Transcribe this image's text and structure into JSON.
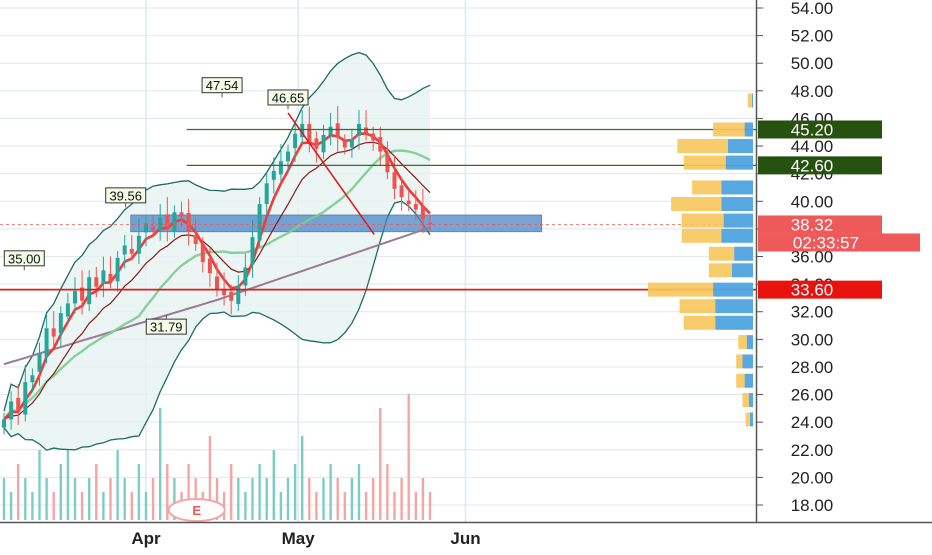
{
  "colors": {
    "up": "#26a69a",
    "down": "#ef5350",
    "ema_fast": "#ef3b3b",
    "ema_mid": "#8b1a1a",
    "sma_mid": "#7ecb8f",
    "sma_long": "#9c7a92",
    "bb_band": "#1f6b5f",
    "bb_fill": "#e6f3f1",
    "zone": "#4a86c8",
    "level_line": "#3d6b2a",
    "support_line": "#e01b1b",
    "vp_buy": "#f7c65a",
    "vp_sell": "#4fa3e0",
    "grid": "#dce8f2"
  },
  "chart_data": {
    "type": "candlestick",
    "ylim": [
      16.0,
      55.0
    ],
    "x_start": "2019-03-04",
    "y_ticks": [
      "18.00",
      "20.00",
      "22.00",
      "24.00",
      "26.00",
      "28.00",
      "30.00",
      "32.00",
      "34.00",
      "36.00",
      "38.00",
      "40.00",
      "42.00",
      "44.00",
      "46.00",
      "48.00",
      "50.00",
      "52.00",
      "54.00"
    ],
    "x_ticks": [
      {
        "label": "Apr",
        "date": "2019-04-01"
      },
      {
        "label": "May",
        "date": "2019-05-01"
      },
      {
        "label": "Jun",
        "date": "2019-06-03"
      }
    ],
    "last_price": "38.32",
    "countdown": "02:33:57",
    "horizontal_levels": [
      {
        "label": "45.20",
        "value": 45.2,
        "kind": "resistance"
      },
      {
        "label": "42.60",
        "value": 42.6,
        "kind": "resistance"
      },
      {
        "label": "33.60",
        "value": 33.6,
        "kind": "support"
      }
    ],
    "annotations": [
      {
        "text": "47.54",
        "date": "2019-04-16",
        "value": 47.54
      },
      {
        "text": "46.65",
        "date": "2019-04-29",
        "value": 46.65
      },
      {
        "text": "39.56",
        "date": "2019-03-28",
        "value": 39.56
      },
      {
        "text": "35.00",
        "date": "2019-03-08",
        "value": 35.0
      },
      {
        "text": "31.79",
        "date": "2019-04-05",
        "value": 31.79
      }
    ],
    "zone": {
      "from": 37.8,
      "to": 39.0,
      "start_date": "2019-03-29",
      "end_date": "2019-06-18"
    },
    "event_marker": "E",
    "closes": [
      24.2,
      25.5,
      24.8,
      26.9,
      27.4,
      29.0,
      30.8,
      30.2,
      31.9,
      32.6,
      33.5,
      32.8,
      34.5,
      33.8,
      35.0,
      34.2,
      35.9,
      36.8,
      36.2,
      37.5,
      38.4,
      37.9,
      38.8,
      38.1,
      39.2,
      38.9,
      37.8,
      36.9,
      35.6,
      34.8,
      33.6,
      33.2,
      32.8,
      33.9,
      35.2,
      37.4,
      39.8,
      41.3,
      42.2,
      42.9,
      43.6,
      44.9,
      45.6,
      44.3,
      43.8,
      44.8,
      45.4,
      44.6,
      43.9,
      44.5,
      45.6,
      44.9,
      44.4,
      43.6,
      42.1,
      40.9,
      40.3,
      39.8,
      39.4,
      38.7,
      38.32
    ],
    "volumes": [
      3,
      2,
      4,
      3,
      2,
      5,
      3,
      2,
      4,
      5,
      3,
      2,
      3,
      4,
      2,
      3,
      5,
      3,
      2,
      4,
      2,
      3,
      8,
      4,
      3,
      2,
      4,
      3,
      2,
      6,
      3,
      2,
      4,
      3,
      2,
      3,
      4,
      3,
      5,
      2,
      3,
      4,
      6,
      3,
      2,
      3,
      4,
      3,
      2,
      3,
      4,
      2,
      3,
      8,
      4,
      2,
      3,
      9,
      2,
      3,
      2
    ],
    "volume_profile": [
      {
        "price": 47.3,
        "buy": 4,
        "sell": 1
      },
      {
        "price": 45.2,
        "buy": 30,
        "sell": 8
      },
      {
        "price": 44.0,
        "buy": 48,
        "sell": 24
      },
      {
        "price": 42.8,
        "buy": 40,
        "sell": 26
      },
      {
        "price": 41.0,
        "buy": 28,
        "sell": 30
      },
      {
        "price": 39.8,
        "buy": 48,
        "sell": 30
      },
      {
        "price": 38.6,
        "buy": 40,
        "sell": 28
      },
      {
        "price": 37.5,
        "buy": 38,
        "sell": 30
      },
      {
        "price": 36.2,
        "buy": 24,
        "sell": 18
      },
      {
        "price": 35.0,
        "buy": 22,
        "sell": 20
      },
      {
        "price": 33.6,
        "buy": 62,
        "sell": 38
      },
      {
        "price": 32.4,
        "buy": 34,
        "sell": 36
      },
      {
        "price": 31.2,
        "buy": 30,
        "sell": 36
      },
      {
        "price": 29.8,
        "buy": 8,
        "sell": 6
      },
      {
        "price": 28.4,
        "buy": 6,
        "sell": 10
      },
      {
        "price": 27.0,
        "buy": 8,
        "sell": 8
      },
      {
        "price": 25.6,
        "buy": 6,
        "sell": 4
      },
      {
        "price": 24.2,
        "buy": 4,
        "sell": 3
      }
    ]
  }
}
